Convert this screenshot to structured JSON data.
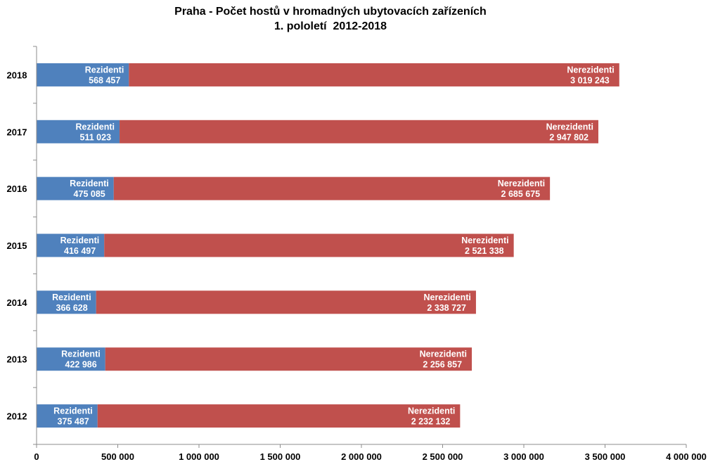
{
  "chart_data": {
    "type": "bar",
    "orientation": "horizontal",
    "stacked": true,
    "title": "Praha - Počet hostů v hromadných ubytovacích zařízeních",
    "subtitle": "1. pololetí  2012-2018",
    "categories": [
      "2012",
      "2013",
      "2014",
      "2015",
      "2016",
      "2017",
      "2018"
    ],
    "series": [
      {
        "name": "Rezidenti",
        "color": "#4F81BD",
        "values": [
          375487,
          422986,
          366628,
          416497,
          475085,
          511023,
          568457
        ],
        "value_labels": [
          "375 487",
          "422 986",
          "366 628",
          "416 497",
          "475 085",
          "511 023",
          "568 457"
        ]
      },
      {
        "name": "Nerezidenti",
        "color": "#C0504D",
        "values": [
          2232132,
          2256857,
          2338727,
          2521338,
          2685675,
          2947802,
          3019243
        ],
        "value_labels": [
          "2 232 132",
          "2 256 857",
          "2 338 727",
          "2 521 338",
          "2 685 675",
          "2 947 802",
          "3 019 243"
        ]
      }
    ],
    "xlim": [
      0,
      4000000
    ],
    "x_ticks": [
      0,
      500000,
      1000000,
      1500000,
      2000000,
      2500000,
      3000000,
      3500000,
      4000000
    ],
    "x_tick_labels": [
      "0",
      "500 000",
      "1 000 000",
      "1 500 000",
      "2 000 000",
      "2 500 000",
      "3 000 000",
      "3 500 000",
      "4 000 000"
    ],
    "grid": false,
    "legend": "none",
    "xlabel": "",
    "ylabel": ""
  }
}
